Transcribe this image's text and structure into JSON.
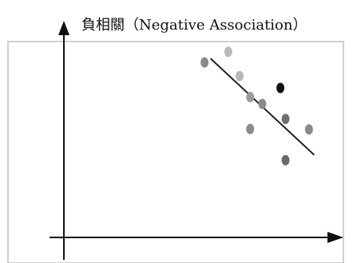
{
  "chart_data": {
    "type": "scatter",
    "title": "負相關（Negative Association）",
    "xlabel": "",
    "ylabel": "",
    "xlim": [
      0,
      100
    ],
    "ylim": [
      0,
      100
    ],
    "grid": false,
    "legend": "none",
    "points": [
      {
        "x": 52.1,
        "y": 86.5,
        "color": "#8a8a8a"
      },
      {
        "x": 60.9,
        "y": 91.8,
        "color": "#b8b8b8"
      },
      {
        "x": 65.1,
        "y": 79.8,
        "color": "#b8b8b8"
      },
      {
        "x": 69.0,
        "y": 69.4,
        "color": "#9a9a9a"
      },
      {
        "x": 73.5,
        "y": 66.0,
        "color": "#8a8a8a"
      },
      {
        "x": 80.2,
        "y": 73.9,
        "color": "#111111"
      },
      {
        "x": 82.1,
        "y": 58.6,
        "color": "#707070"
      },
      {
        "x": 69.0,
        "y": 53.6,
        "color": "#8a8a8a"
      },
      {
        "x": 90.8,
        "y": 53.4,
        "color": "#8a8a8a"
      },
      {
        "x": 82.1,
        "y": 38.2,
        "color": "#6a6a6a"
      }
    ],
    "trend_line": {
      "x": [
        54.3,
        92.7
      ],
      "y": [
        88.5,
        40.8
      ]
    },
    "colors": {
      "axis": "#111111",
      "frame": "#cfcfcf",
      "trend": "#222222"
    }
  }
}
